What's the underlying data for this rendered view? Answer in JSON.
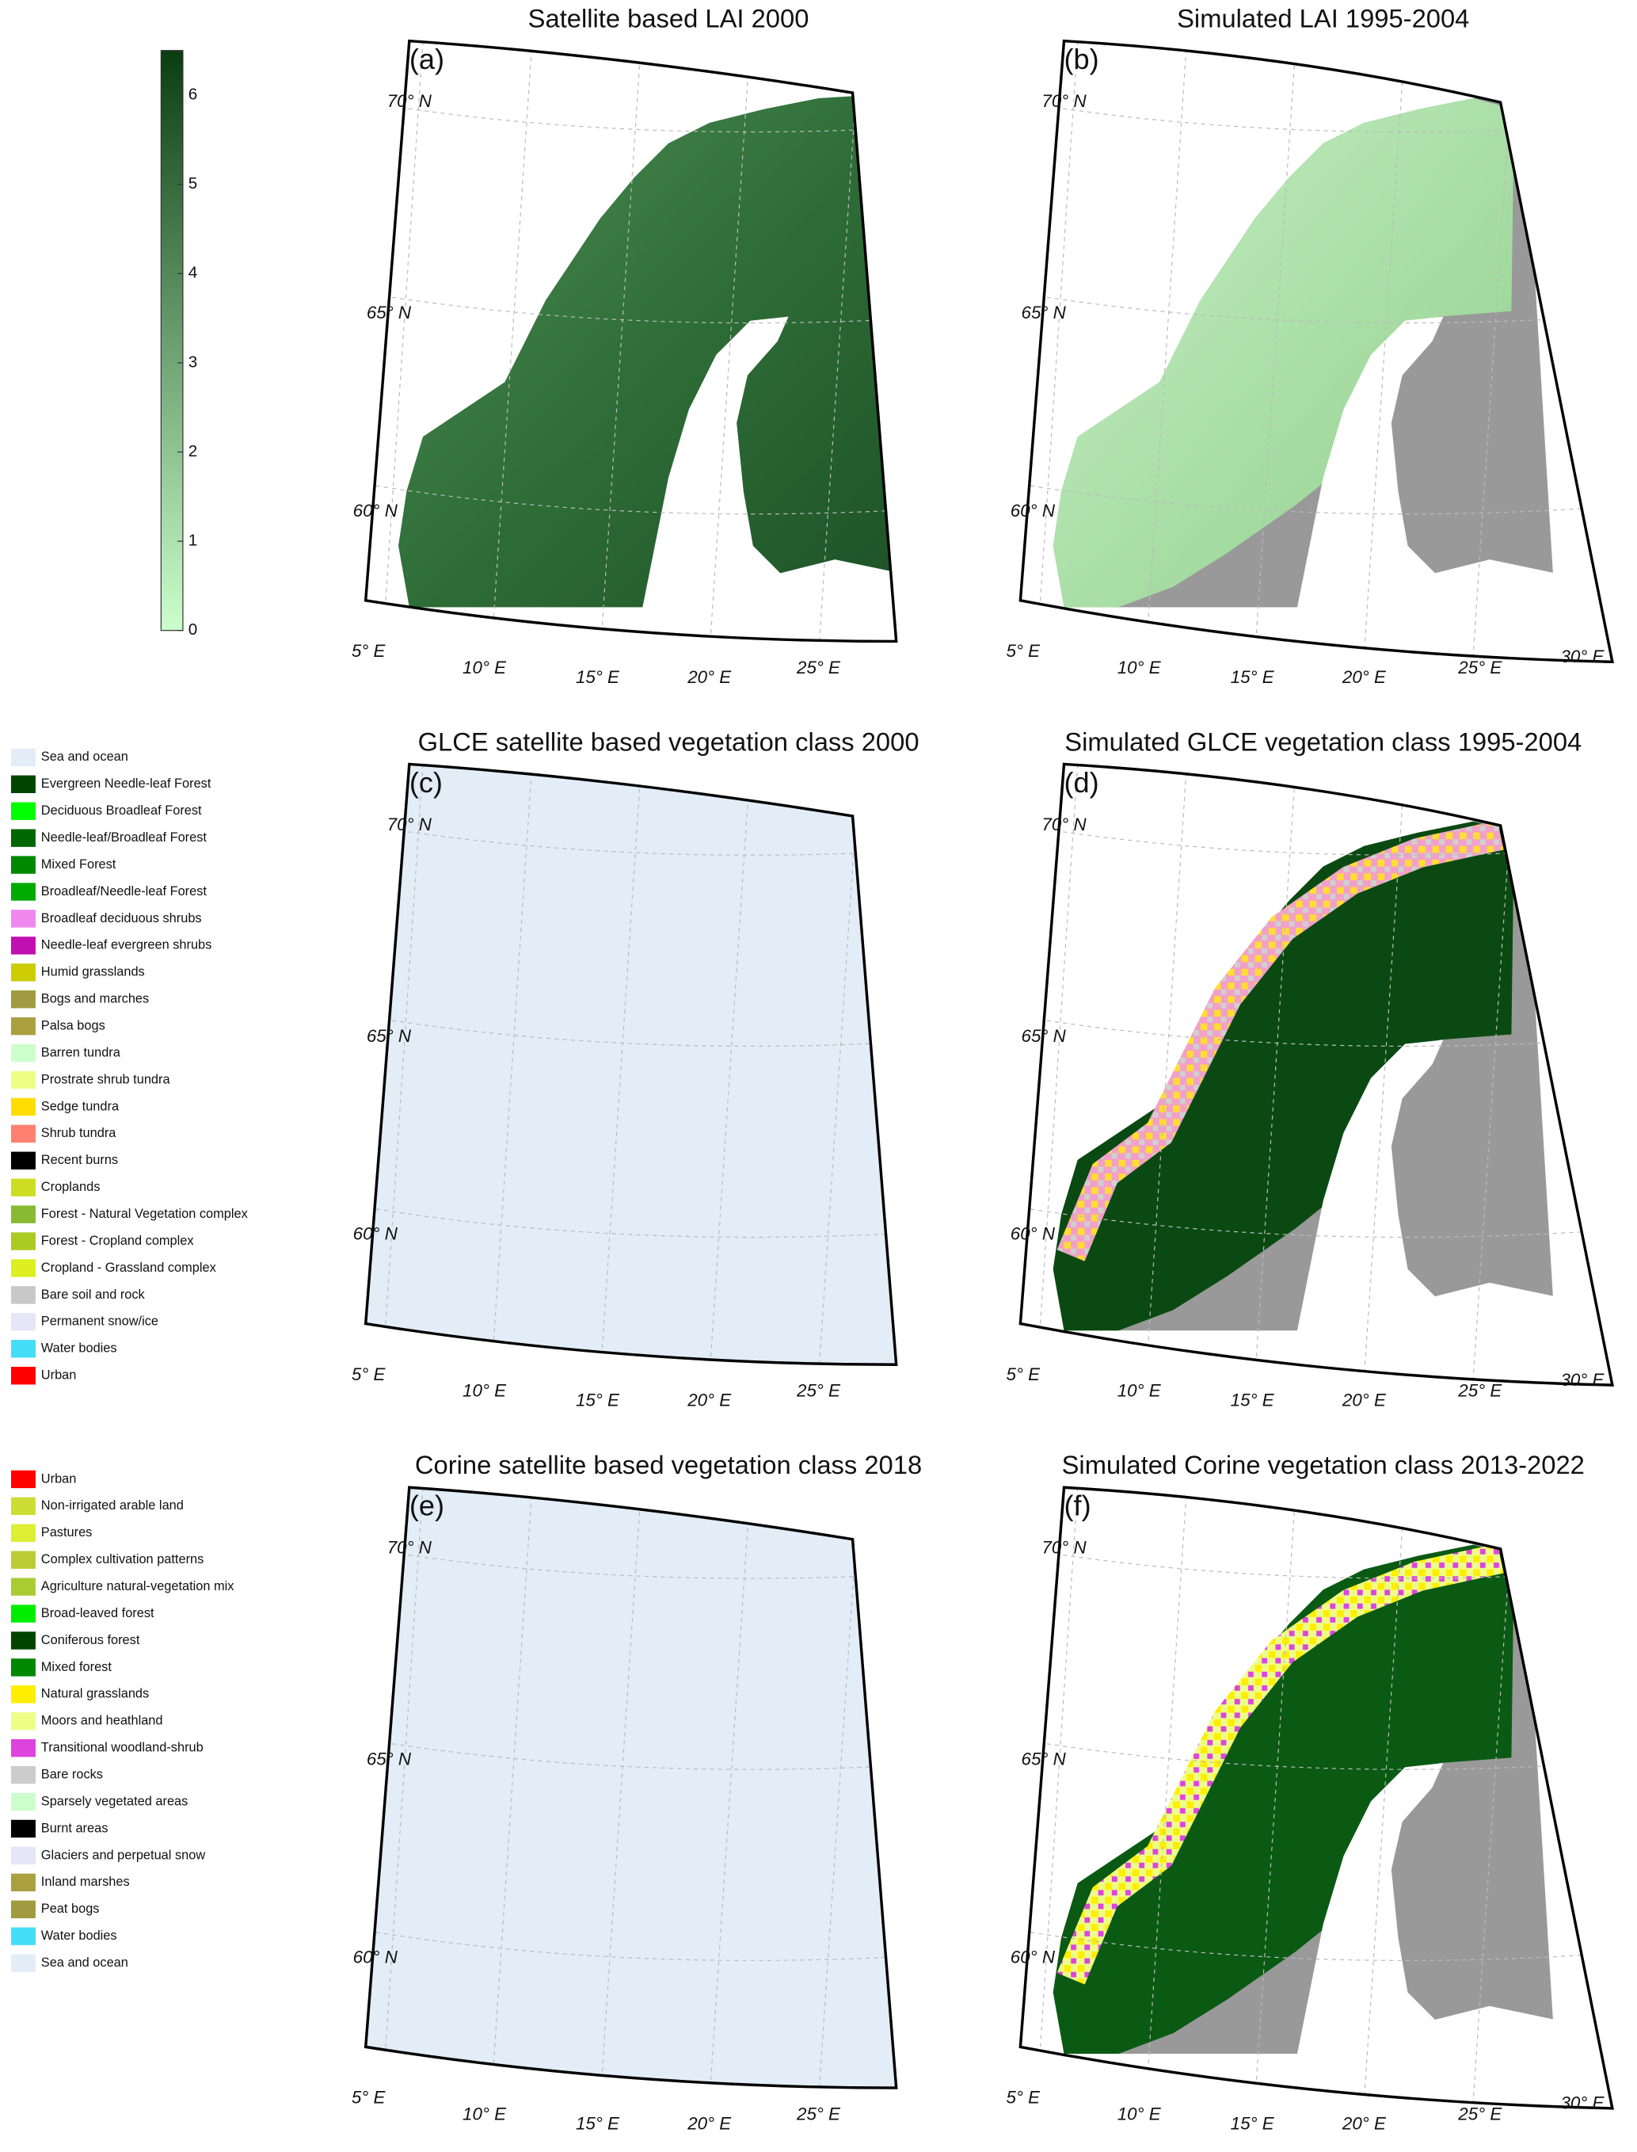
{
  "colorbar": {
    "range": [
      0,
      6.5
    ],
    "ticks": [
      0,
      1,
      2,
      3,
      4,
      5,
      6
    ],
    "colors": [
      "#ccffcc",
      "#0a3d10"
    ]
  },
  "panels": [
    {
      "label": "(a)",
      "title": "Satellite based LAI 2000",
      "lat_labels": [
        "70° N",
        "65° N",
        "60° N"
      ],
      "lon_labels": [
        "5° E",
        "10° E",
        "15° E",
        "20° E",
        "25° E"
      ]
    },
    {
      "label": "(b)",
      "title": "Simulated LAI 1995-2004",
      "lat_labels": [
        "70° N",
        "65° N",
        "60° N"
      ],
      "lon_labels": [
        "5° E",
        "10° E",
        "15° E",
        "20° E",
        "25° E",
        "30° E"
      ]
    },
    {
      "label": "(c)",
      "title": "GLCE satellite based vegetation class 2000",
      "lat_labels": [
        "70° N",
        "65° N",
        "60° N"
      ],
      "lon_labels": [
        "5° E",
        "10° E",
        "15° E",
        "20° E",
        "25° E"
      ]
    },
    {
      "label": "(d)",
      "title": "Simulated GLCE vegetation class 1995-2004",
      "lat_labels": [
        "70° N",
        "65° N",
        "60° N"
      ],
      "lon_labels": [
        "5° E",
        "10° E",
        "15° E",
        "20° E",
        "25° E",
        "30° E"
      ]
    },
    {
      "label": "(e)",
      "title": "Corine satellite based vegetation class 2018",
      "lat_labels": [
        "70° N",
        "65° N",
        "60° N"
      ],
      "lon_labels": [
        "5° E",
        "10° E",
        "15° E",
        "20° E",
        "25° E"
      ]
    },
    {
      "label": "(f)",
      "title": "Simulated Corine vegetation class 2013-2022",
      "lat_labels": [
        "70° N",
        "65° N",
        "60° N"
      ],
      "lon_labels": [
        "5° E",
        "10° E",
        "15° E",
        "20° E",
        "25° E",
        "30° E"
      ]
    }
  ],
  "legend_glce": [
    {
      "label": "Sea and ocean",
      "color": "#e3edf8"
    },
    {
      "label": "Evergreen Needle-leaf Forest",
      "color": "#004400"
    },
    {
      "label": "Deciduous Broadleaf Forest",
      "color": "#00ff00"
    },
    {
      "label": "Needle-leaf/Broadleaf Forest",
      "color": "#006600"
    },
    {
      "label": "Mixed Forest",
      "color": "#008800"
    },
    {
      "label": "Broadleaf/Needle-leaf Forest",
      "color": "#00aa00"
    },
    {
      "label": "Broadleaf deciduous shrubs",
      "color": "#ee88ee"
    },
    {
      "label": "Needle-leaf evergreen shrubs",
      "color": "#c010b0"
    },
    {
      "label": "Humid grasslands",
      "color": "#cccc00"
    },
    {
      "label": "Bogs and marches",
      "color": "#a09a40"
    },
    {
      "label": "Palsa bogs",
      "color": "#aaa040"
    },
    {
      "label": "Barren tundra",
      "color": "#ccffcc"
    },
    {
      "label": "Prostrate shrub tundra",
      "color": "#eeff88"
    },
    {
      "label": "Sedge tundra",
      "color": "#ffdd00"
    },
    {
      "label": "Shrub tundra",
      "color": "#ff8070"
    },
    {
      "label": "Recent burns",
      "color": "#000000"
    },
    {
      "label": "Croplands",
      "color": "#ccdd22"
    },
    {
      "label": "Forest - Natural Vegetation complex",
      "color": "#88bb33"
    },
    {
      "label": "Forest - Cropland complex",
      "color": "#aacc22"
    },
    {
      "label": "Cropland - Grassland complex",
      "color": "#ddee22"
    },
    {
      "label": "Bare soil and rock",
      "color": "#c8c8c8"
    },
    {
      "label": "Permanent snow/ice",
      "color": "#e6e6f8"
    },
    {
      "label": "Water bodies",
      "color": "#44ddf8"
    },
    {
      "label": "Urban",
      "color": "#ff0000"
    }
  ],
  "legend_corine": [
    {
      "label": "Urban",
      "color": "#ff0000"
    },
    {
      "label": "Non-irrigated arable land",
      "color": "#ccdd33"
    },
    {
      "label": "Pastures",
      "color": "#ddee33"
    },
    {
      "label": "Complex cultivation patterns",
      "color": "#bbcc33"
    },
    {
      "label": "Agriculture natural-vegetation mix",
      "color": "#aacc33"
    },
    {
      "label": "Broad-leaved forest",
      "color": "#00ee00"
    },
    {
      "label": "Coniferous forest",
      "color": "#004400"
    },
    {
      "label": "Mixed forest",
      "color": "#008800"
    },
    {
      "label": "Natural grasslands",
      "color": "#ffee00"
    },
    {
      "label": "Moors and heathland",
      "color": "#eeff88"
    },
    {
      "label": "Transitional woodland-shrub",
      "color": "#dd44dd"
    },
    {
      "label": "Bare rocks",
      "color": "#cccccc"
    },
    {
      "label": "Sparsely vegetated areas",
      "color": "#ccffcc"
    },
    {
      "label": "Burnt areas",
      "color": "#000000"
    },
    {
      "label": "Glaciers and perpetual snow",
      "color": "#e6e6f8"
    },
    {
      "label": "Inland marshes",
      "color": "#aaa040"
    },
    {
      "label": "Peat bogs",
      "color": "#a09a40"
    },
    {
      "label": "Water bodies",
      "color": "#44ddf8"
    },
    {
      "label": "Sea and ocean",
      "color": "#e3edf8"
    }
  ]
}
